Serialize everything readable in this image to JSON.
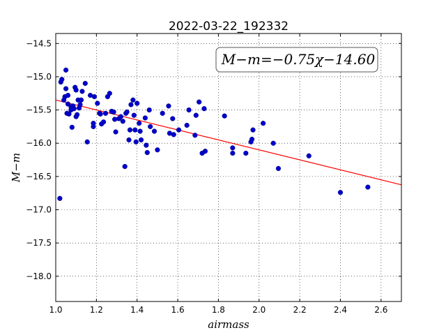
{
  "chart_data": {
    "type": "scatter",
    "title": "2022-03-22_192332",
    "xlabel": "airmass",
    "ylabel": "M−m",
    "xlim": [
      1.0,
      2.7
    ],
    "ylim": [
      -14.35,
      -18.38
    ],
    "grid": true,
    "xticks": [
      1.0,
      1.2,
      1.4,
      1.6,
      1.8,
      2.0,
      2.2,
      2.4,
      2.6
    ],
    "xtick_labels": [
      "1.0",
      "1.2",
      "1.4",
      "1.6",
      "1.8",
      "2.0",
      "2.2",
      "2.4",
      "2.6"
    ],
    "yticks": [
      -14.5,
      -15.0,
      -15.5,
      -16.0,
      -16.5,
      -17.0,
      -17.5,
      -18.0
    ],
    "ytick_labels": [
      "−14.5",
      "−15.0",
      "−15.5",
      "−16.0",
      "−16.5",
      "−17.0",
      "−17.5",
      "−18.0"
    ],
    "annotation": "M−m=−0.75χ−14.60",
    "fit": {
      "slope": -0.75,
      "intercept": -14.6,
      "color": "#ff0000"
    },
    "marker_color": "#0000cc",
    "points": [
      [
        1.02,
        -16.83
      ],
      [
        1.025,
        -15.08
      ],
      [
        1.03,
        -15.04
      ],
      [
        1.04,
        -15.35
      ],
      [
        1.045,
        -15.3
      ],
      [
        1.05,
        -14.9
      ],
      [
        1.05,
        -15.18
      ],
      [
        1.055,
        -15.55
      ],
      [
        1.06,
        -15.28
      ],
      [
        1.06,
        -15.41
      ],
      [
        1.065,
        -15.56
      ],
      [
        1.075,
        -15.5
      ],
      [
        1.075,
        -15.45
      ],
      [
        1.08,
        -15.76
      ],
      [
        1.085,
        -15.44
      ],
      [
        1.09,
        -15.48
      ],
      [
        1.095,
        -15.16
      ],
      [
        1.1,
        -15.6
      ],
      [
        1.1,
        -15.2
      ],
      [
        1.105,
        -15.57
      ],
      [
        1.11,
        -15.35
      ],
      [
        1.115,
        -15.47
      ],
      [
        1.12,
        -15.42
      ],
      [
        1.125,
        -15.35
      ],
      [
        1.13,
        -15.22
      ],
      [
        1.145,
        -15.1
      ],
      [
        1.155,
        -15.98
      ],
      [
        1.17,
        -15.28
      ],
      [
        1.185,
        -15.75
      ],
      [
        1.185,
        -15.7
      ],
      [
        1.19,
        -15.3
      ],
      [
        1.205,
        -15.4
      ],
      [
        1.215,
        -15.55
      ],
      [
        1.22,
        -15.56
      ],
      [
        1.225,
        -15.71
      ],
      [
        1.235,
        -15.68
      ],
      [
        1.245,
        -15.55
      ],
      [
        1.255,
        -15.3
      ],
      [
        1.265,
        -15.25
      ],
      [
        1.275,
        -15.52
      ],
      [
        1.285,
        -15.53
      ],
      [
        1.29,
        -15.64
      ],
      [
        1.295,
        -15.83
      ],
      [
        1.31,
        -15.63
      ],
      [
        1.32,
        -15.6
      ],
      [
        1.33,
        -15.67
      ],
      [
        1.34,
        -16.35
      ],
      [
        1.345,
        -15.55
      ],
      [
        1.35,
        -15.53
      ],
      [
        1.36,
        -15.95
      ],
      [
        1.365,
        -15.8
      ],
      [
        1.37,
        -15.42
      ],
      [
        1.38,
        -15.35
      ],
      [
        1.385,
        -15.58
      ],
      [
        1.39,
        -15.8
      ],
      [
        1.395,
        -15.98
      ],
      [
        1.4,
        -15.4
      ],
      [
        1.41,
        -15.7
      ],
      [
        1.415,
        -15.82
      ],
      [
        1.42,
        -15.95
      ],
      [
        1.44,
        -15.62
      ],
      [
        1.445,
        -16.03
      ],
      [
        1.45,
        -16.14
      ],
      [
        1.46,
        -15.5
      ],
      [
        1.465,
        -15.75
      ],
      [
        1.485,
        -15.82
      ],
      [
        1.5,
        -16.1
      ],
      [
        1.525,
        -15.55
      ],
      [
        1.555,
        -15.44
      ],
      [
        1.56,
        -15.85
      ],
      [
        1.575,
        -15.63
      ],
      [
        1.58,
        -15.87
      ],
      [
        1.605,
        -15.8
      ],
      [
        1.645,
        -15.73
      ],
      [
        1.655,
        -15.5
      ],
      [
        1.685,
        -15.88
      ],
      [
        1.69,
        -15.58
      ],
      [
        1.705,
        -15.38
      ],
      [
        1.72,
        -16.15
      ],
      [
        1.73,
        -15.48
      ],
      [
        1.735,
        -16.12
      ],
      [
        1.83,
        -15.59
      ],
      [
        1.87,
        -16.07
      ],
      [
        1.87,
        -16.15
      ],
      [
        1.935,
        -16.15
      ],
      [
        1.96,
        -15.98
      ],
      [
        1.965,
        -15.94
      ],
      [
        1.97,
        -15.8
      ],
      [
        2.02,
        -15.7
      ],
      [
        2.07,
        -16.0
      ],
      [
        2.095,
        -16.38
      ],
      [
        2.245,
        -16.19
      ],
      [
        2.4,
        -16.74
      ],
      [
        2.535,
        -16.66
      ]
    ]
  }
}
